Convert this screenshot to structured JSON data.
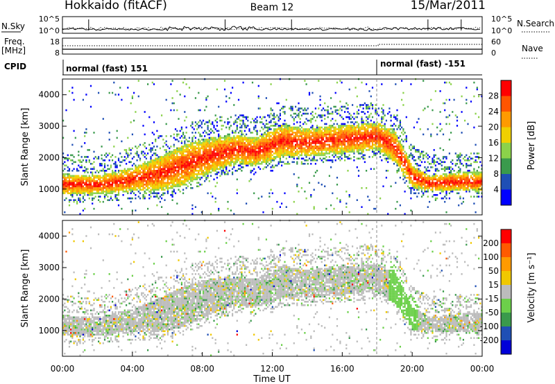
{
  "header": {
    "station": "Hokkaido (fitACF)",
    "beam": "Beam 12",
    "date": "15/Mar/2011"
  },
  "panel_labels": {
    "nsky": "N.Sky",
    "freq_top": "Freq.",
    "freq_unit": "[MHz]",
    "cpid": "CPID",
    "nsearch": "N.Search",
    "nave": "Nave",
    "sky_tick_high": "10^5",
    "sky_tick_low": "10^0",
    "freq_tick_high": "18",
    "freq_tick_low": "8",
    "nave_tick_high": "60",
    "nave_tick_low": "0"
  },
  "cpid_segments": [
    {
      "start_hour": 0,
      "label": "normal (fast) 151"
    },
    {
      "start_hour": 18.05,
      "label": "normal (fast) -151"
    }
  ],
  "axes": {
    "ylabel": "Slant Range [km]",
    "yticks": [
      "1000",
      "2000",
      "3000",
      "4000"
    ],
    "xlabel": "Time UT",
    "xticks": [
      "00:00",
      "04:00",
      "08:00",
      "12:00",
      "16:00",
      "20:00",
      "00:00"
    ]
  },
  "colorbars": {
    "power": {
      "label": "Power [dB]",
      "ticks": [
        "4",
        "8",
        "12",
        "16",
        "20",
        "24",
        "28"
      ],
      "colors": [
        "#0000ff",
        "#1f4fb5",
        "#3a9a4c",
        "#8bd24a",
        "#f0d000",
        "#ff9a00",
        "#ff5500",
        "#ff0000"
      ]
    },
    "velocity": {
      "label": "Velocity [m s⁻¹]",
      "ticks": [
        "200",
        "100",
        "50",
        "15",
        "-15",
        "-50",
        "-100",
        "-200"
      ],
      "colors": [
        "#0000d8",
        "#1f4fb5",
        "#3a9a4c",
        "#6cd04a",
        "#bcbcbc",
        "#f0c800",
        "#ff9a00",
        "#ff5a00",
        "#ff0000"
      ]
    }
  },
  "chart_data": {
    "type": "heatmap",
    "title": "Hokkaido (fitACF) Beam 12 15/Mar/2011",
    "xlabel": "Time UT",
    "ylabel": "Slant Range [km]",
    "xlim": [
      "00:00",
      "24:00"
    ],
    "ylim": [
      180,
      4500
    ],
    "power_band_km": [
      {
        "hour": 0,
        "lower": 800,
        "upper": 1450
      },
      {
        "hour": 2,
        "lower": 800,
        "upper": 1400
      },
      {
        "hour": 4,
        "lower": 900,
        "upper": 1650
      },
      {
        "hour": 5.5,
        "lower": 900,
        "upper": 2000
      },
      {
        "hour": 7,
        "lower": 1100,
        "upper": 2400
      },
      {
        "hour": 8.5,
        "lower": 1500,
        "upper": 2600
      },
      {
        "hour": 10,
        "lower": 1800,
        "upper": 2700
      },
      {
        "hour": 11,
        "lower": 1700,
        "upper": 2600
      },
      {
        "hour": 12.5,
        "lower": 2000,
        "upper": 3000
      },
      {
        "hour": 14,
        "lower": 2000,
        "upper": 2900
      },
      {
        "hour": 16,
        "lower": 2100,
        "upper": 3000
      },
      {
        "hour": 18,
        "lower": 2200,
        "upper": 3100
      },
      {
        "hour": 19,
        "lower": 1800,
        "upper": 2800
      },
      {
        "hour": 20,
        "lower": 1000,
        "upper": 1700
      },
      {
        "hour": 21,
        "lower": 900,
        "upper": 1400
      },
      {
        "hour": 22.5,
        "lower": 900,
        "upper": 1500
      }
    ]
  }
}
